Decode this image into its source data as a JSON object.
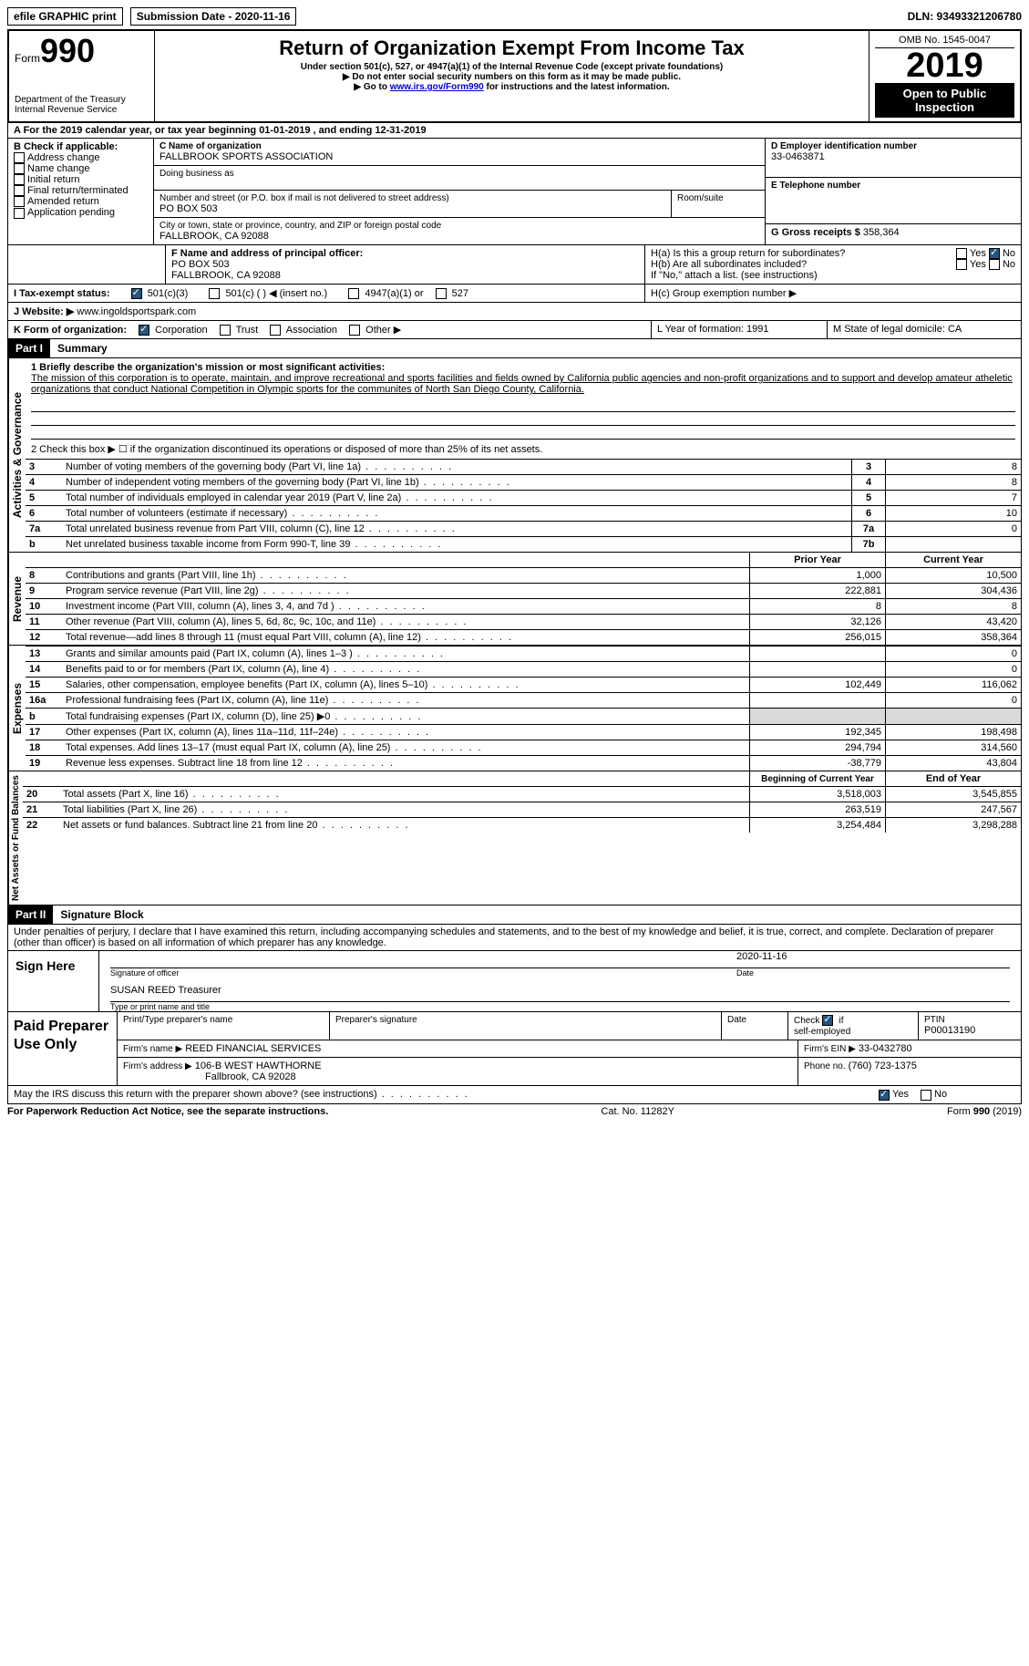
{
  "top": {
    "efile": "efile GRAPHIC print",
    "submission_label": "Submission Date - 2020-11-16",
    "dln": "DLN: 93493321206780"
  },
  "header": {
    "form_word": "Form",
    "form_num": "990",
    "dept": "Department of the Treasury",
    "irs": "Internal Revenue Service",
    "title": "Return of Organization Exempt From Income Tax",
    "sub1": "Under section 501(c), 527, or 4947(a)(1) of the Internal Revenue Code (except private foundations)",
    "sub2": "Do not enter social security numbers on this form as it may be made public.",
    "sub3_pre": "Go to ",
    "sub3_link": "www.irs.gov/Form990",
    "sub3_post": " for instructions and the latest information.",
    "omb": "OMB No. 1545-0047",
    "year": "2019",
    "open": "Open to Public Inspection"
  },
  "row_a": "A For the 2019 calendar year, or tax year beginning 01-01-2019   , and ending 12-31-2019",
  "section_b": {
    "b_label": "B Check if applicable:",
    "b_items": [
      "Address change",
      "Name change",
      "Initial return",
      "Final return/terminated",
      "Amended return",
      "Application pending"
    ],
    "c_label": "C Name of organization",
    "c_name": "FALLBROOK SPORTS ASSOCIATION",
    "dba": "Doing business as",
    "addr_label": "Number and street (or P.O. box if mail is not delivered to street address)",
    "addr": "PO BOX 503",
    "room": "Room/suite",
    "city_label": "City or town, state or province, country, and ZIP or foreign postal code",
    "city": "FALLBROOK, CA  92088",
    "d_label": "D Employer identification number",
    "ein": "33-0463871",
    "e_label": "E Telephone number",
    "g_label": "G Gross receipts $",
    "g_val": "358,364"
  },
  "row_f": {
    "f_label": "F Name and address of principal officer:",
    "f_addr1": "PO BOX 503",
    "f_addr2": "FALLBROOK, CA  92088",
    "ha": "H(a)  Is this a group return for subordinates?",
    "hb": "H(b)  Are all subordinates included?",
    "hb_note": "If \"No,\" attach a list. (see instructions)",
    "hc": "H(c)  Group exemption number ▶",
    "yes": "Yes",
    "no": "No"
  },
  "row_i": {
    "label": "I   Tax-exempt status:",
    "o1": "501(c)(3)",
    "o2": "501(c) (   ) ◀ (insert no.)",
    "o3": "4947(a)(1) or",
    "o4": "527"
  },
  "row_j": {
    "label": "J   Website: ▶",
    "val": "www.ingoldsportspark.com"
  },
  "row_k": {
    "label": "K Form of organization:",
    "o1": "Corporation",
    "o2": "Trust",
    "o3": "Association",
    "o4": "Other ▶",
    "l": "L Year of formation: 1991",
    "m": "M State of legal domicile: CA"
  },
  "part1": {
    "header": "Part I",
    "title": "Summary",
    "line1_label": "1   Briefly describe the organization's mission or most significant activities:",
    "mission": "The mission of this corporation is to operate, maintain, and improve recreational and sports facilities and fields owned by California public agencies and non-profit organizations and to support and develop amateur atheletic organizations that conduct National Competition in Olympic sports for the communites of North San Diego County, California.",
    "line2": "2   Check this box ▶ ☐  if the organization discontinued its operations or disposed of more than 25% of its net assets.",
    "rows_gov": [
      {
        "n": "3",
        "t": "Number of voting members of the governing body (Part VI, line 1a)",
        "k": "3",
        "v": "8"
      },
      {
        "n": "4",
        "t": "Number of independent voting members of the governing body (Part VI, line 1b)",
        "k": "4",
        "v": "8"
      },
      {
        "n": "5",
        "t": "Total number of individuals employed in calendar year 2019 (Part V, line 2a)",
        "k": "5",
        "v": "7"
      },
      {
        "n": "6",
        "t": "Total number of volunteers (estimate if necessary)",
        "k": "6",
        "v": "10"
      },
      {
        "n": "7a",
        "t": "Total unrelated business revenue from Part VIII, column (C), line 12",
        "k": "7a",
        "v": "0"
      },
      {
        "n": "b",
        "t": "Net unrelated business taxable income from Form 990-T, line 39",
        "k": "7b",
        "v": ""
      }
    ],
    "col_prior": "Prior Year",
    "col_current": "Current Year",
    "rows_rev": [
      {
        "n": "8",
        "t": "Contributions and grants (Part VIII, line 1h)",
        "p": "1,000",
        "c": "10,500"
      },
      {
        "n": "9",
        "t": "Program service revenue (Part VIII, line 2g)",
        "p": "222,881",
        "c": "304,436"
      },
      {
        "n": "10",
        "t": "Investment income (Part VIII, column (A), lines 3, 4, and 7d )",
        "p": "8",
        "c": "8"
      },
      {
        "n": "11",
        "t": "Other revenue (Part VIII, column (A), lines 5, 6d, 8c, 9c, 10c, and 11e)",
        "p": "32,126",
        "c": "43,420"
      },
      {
        "n": "12",
        "t": "Total revenue—add lines 8 through 11 (must equal Part VIII, column (A), line 12)",
        "p": "256,015",
        "c": "358,364"
      }
    ],
    "rows_exp": [
      {
        "n": "13",
        "t": "Grants and similar amounts paid (Part IX, column (A), lines 1–3 )",
        "p": "",
        "c": "0"
      },
      {
        "n": "14",
        "t": "Benefits paid to or for members (Part IX, column (A), line 4)",
        "p": "",
        "c": "0"
      },
      {
        "n": "15",
        "t": "Salaries, other compensation, employee benefits (Part IX, column (A), lines 5–10)",
        "p": "102,449",
        "c": "116,062"
      },
      {
        "n": "16a",
        "t": "Professional fundraising fees (Part IX, column (A), line 11e)",
        "p": "",
        "c": "0"
      },
      {
        "n": "b",
        "t": "Total fundraising expenses (Part IX, column (D), line 25) ▶0",
        "p": "shade",
        "c": "shade"
      },
      {
        "n": "17",
        "t": "Other expenses (Part IX, column (A), lines 11a–11d, 11f–24e)",
        "p": "192,345",
        "c": "198,498"
      },
      {
        "n": "18",
        "t": "Total expenses. Add lines 13–17 (must equal Part IX, column (A), line 25)",
        "p": "294,794",
        "c": "314,560"
      },
      {
        "n": "19",
        "t": "Revenue less expenses. Subtract line 18 from line 12",
        "p": "-38,779",
        "c": "43,804"
      }
    ],
    "col_begin": "Beginning of Current Year",
    "col_end": "End of Year",
    "rows_bal": [
      {
        "n": "20",
        "t": "Total assets (Part X, line 16)",
        "p": "3,518,003",
        "c": "3,545,855"
      },
      {
        "n": "21",
        "t": "Total liabilities (Part X, line 26)",
        "p": "263,519",
        "c": "247,567"
      },
      {
        "n": "22",
        "t": "Net assets or fund balances. Subtract line 21 from line 20",
        "p": "3,254,484",
        "c": "3,298,288"
      }
    ],
    "vlabels": {
      "gov": "Activities & Governance",
      "rev": "Revenue",
      "exp": "Expenses",
      "bal": "Net Assets or Fund Balances"
    }
  },
  "part2": {
    "header": "Part II",
    "title": "Signature Block",
    "perjury": "Under penalties of perjury, I declare that I have examined this return, including accompanying schedules and statements, and to the best of my knowledge and belief, it is true, correct, and complete. Declaration of preparer (other than officer) is based on all information of which preparer has any knowledge.",
    "sign_here": "Sign Here",
    "sig_officer": "Signature of officer",
    "sig_date": "2020-11-16",
    "date_lbl": "Date",
    "officer_name": "SUSAN REED Treasurer",
    "type_name": "Type or print name and title",
    "paid": "Paid Preparer Use Only",
    "prep_name_lbl": "Print/Type preparer's name",
    "prep_sig_lbl": "Preparer's signature",
    "check_lbl": "Check",
    "self_emp": "self-employed",
    "if_lbl": "if",
    "ptin_lbl": "PTIN",
    "ptin": "P00013190",
    "firm_name_lbl": "Firm's name   ▶",
    "firm_name": "REED FINANCIAL SERVICES",
    "firm_ein_lbl": "Firm's EIN ▶",
    "firm_ein": "33-0432780",
    "firm_addr_lbl": "Firm's address ▶",
    "firm_addr1": "106-B WEST HAWTHORNE",
    "firm_addr2": "Fallbrook, CA  92028",
    "phone_lbl": "Phone no.",
    "phone": "(760) 723-1375",
    "discuss": "May the IRS discuss this return with the preparer shown above? (see instructions)",
    "yes": "Yes",
    "no": "No"
  },
  "footer": {
    "left": "For Paperwork Reduction Act Notice, see the separate instructions.",
    "mid": "Cat. No. 11282Y",
    "right": "Form 990 (2019)"
  }
}
